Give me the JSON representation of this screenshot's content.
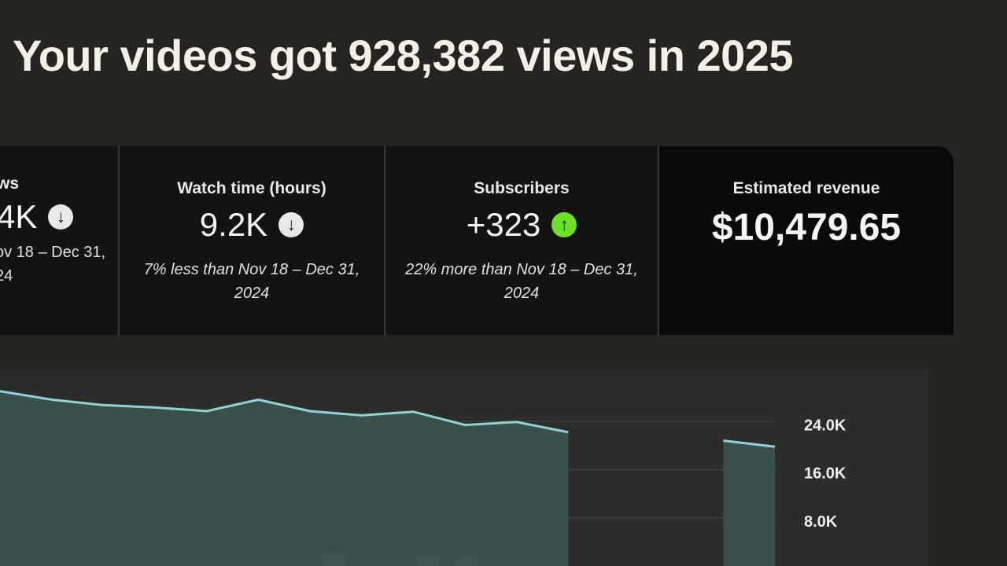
{
  "header": {
    "title": "Your videos got 928,382 views in 2025"
  },
  "cards": [
    {
      "label": "ws",
      "value": "4K",
      "comparison": [
        "ov 18 – Dec 31,",
        "24"
      ]
    },
    {
      "label": "Watch time (hours)",
      "value": "9.2K",
      "comparison": "7% less than Nov 18 – Dec 31, 2024"
    },
    {
      "label": "Subscribers",
      "value": "+323",
      "comparison": "22% more than Nov 18 – Dec 31, 2024"
    },
    {
      "label": "Estimated revenue",
      "value": "$10,479.65"
    }
  ],
  "chart_data": {
    "type": "area",
    "color": "#8fd3d6",
    "values": [
      29000,
      27600,
      26700,
      26300,
      25700,
      27600,
      25700,
      25000,
      25600,
      23400,
      23900,
      22200,
      null,
      null,
      20800,
      19800
    ],
    "ylim": [
      0,
      30000
    ],
    "yticks": [
      {
        "value": 24000,
        "label": "24.0K"
      },
      {
        "value": 16000,
        "label": "16.0K"
      },
      {
        "value": 8000,
        "label": "8.0K"
      }
    ]
  }
}
